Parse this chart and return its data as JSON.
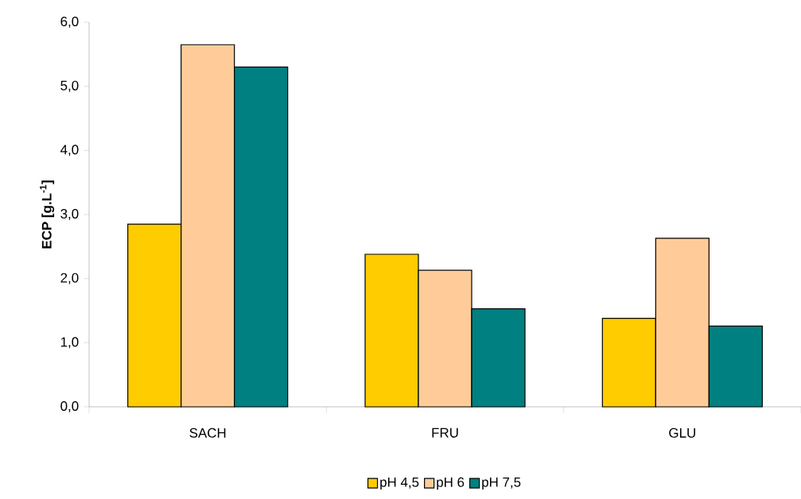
{
  "chart_data": {
    "type": "bar",
    "ylabel": "ECP [g.L$^{-1}$]",
    "categories": [
      "SACH",
      "FRU",
      "GLU"
    ],
    "series": [
      {
        "name": "pH 4,5",
        "color": "#ffcc00",
        "values": [
          2.85,
          2.38,
          1.38
        ]
      },
      {
        "name": "pH 6",
        "color": "#ffcc99",
        "values": [
          5.65,
          2.13,
          2.63
        ]
      },
      {
        "name": "pH 7,5",
        "color": "#008080",
        "values": [
          5.3,
          1.53,
          1.26
        ]
      }
    ],
    "ylim": [
      0,
      6
    ],
    "yticks": [
      {
        "value": 0,
        "label": "0,0"
      },
      {
        "value": 1,
        "label": "1,0"
      },
      {
        "value": 2,
        "label": "2,0"
      },
      {
        "value": 3,
        "label": "3,0"
      },
      {
        "value": 4,
        "label": "4,0"
      },
      {
        "value": 5,
        "label": "5,0"
      },
      {
        "value": 6,
        "label": "6,0"
      }
    ],
    "legend": "bottom"
  }
}
